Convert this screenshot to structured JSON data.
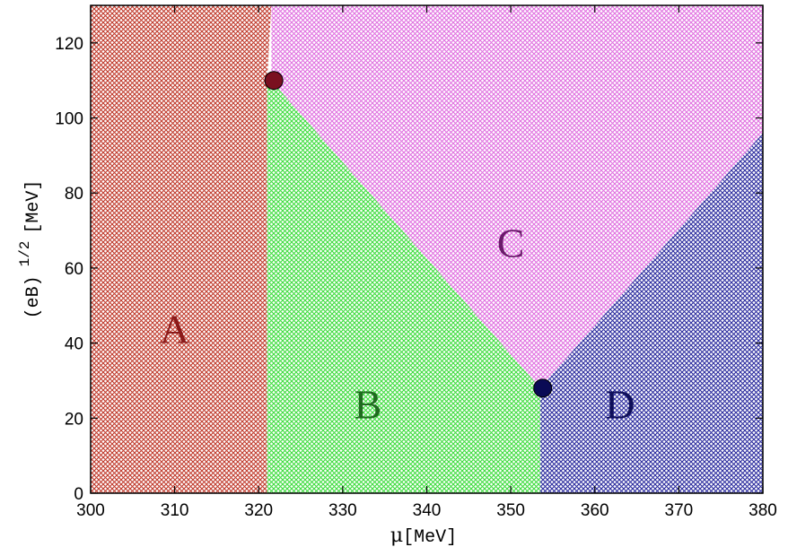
{
  "chart_data": {
    "type": "area",
    "title": "",
    "xlabel": {
      "symbol": "μ",
      "unit": "[MeV]"
    },
    "ylabel": {
      "base": "(eB)",
      "exponent": "1/2",
      "unit": "[MeV]"
    },
    "xlim": [
      300,
      380
    ],
    "ylim": [
      0,
      130
    ],
    "xticks": [
      300,
      310,
      320,
      330,
      340,
      350,
      360,
      370,
      380
    ],
    "yticks": [
      0,
      20,
      40,
      60,
      80,
      100,
      120
    ],
    "grid": false,
    "legend": "none",
    "regions": [
      {
        "label": "A",
        "color": "#c0392b",
        "text_color": "#8b1a1a",
        "polygon": [
          [
            300,
            0
          ],
          [
            321,
            0
          ],
          [
            321,
            110
          ],
          [
            321.5,
            130
          ],
          [
            300,
            130
          ]
        ],
        "label_at": [
          310,
          40
        ]
      },
      {
        "label": "B",
        "color": "#3ddc3d",
        "text_color": "#1f6b1f",
        "polygon": [
          [
            321,
            0
          ],
          [
            353.5,
            0
          ],
          [
            353.5,
            28
          ],
          [
            321.5,
            110
          ],
          [
            321,
            110
          ]
        ],
        "label_at": [
          333,
          20
        ]
      },
      {
        "label": "C",
        "color": "#e070e0",
        "text_color": "#6b1a6b",
        "polygon": [
          [
            321.5,
            130
          ],
          [
            321.5,
            110
          ],
          [
            353.5,
            28
          ],
          [
            380,
            96
          ],
          [
            380,
            130
          ]
        ],
        "label_at": [
          350,
          63
        ]
      },
      {
        "label": "D",
        "color": "#2b2b9e",
        "text_color": "#0f0f5a",
        "polygon": [
          [
            353.5,
            0
          ],
          [
            380,
            0
          ],
          [
            380,
            96
          ],
          [
            353.5,
            28
          ]
        ],
        "label_at": [
          363,
          20
        ]
      }
    ],
    "points": [
      {
        "x": 321.8,
        "y": 110,
        "color": "#7a1020",
        "name": "critical-point-upper"
      },
      {
        "x": 353.8,
        "y": 28,
        "color": "#0a0a55",
        "name": "critical-point-lower"
      }
    ]
  }
}
